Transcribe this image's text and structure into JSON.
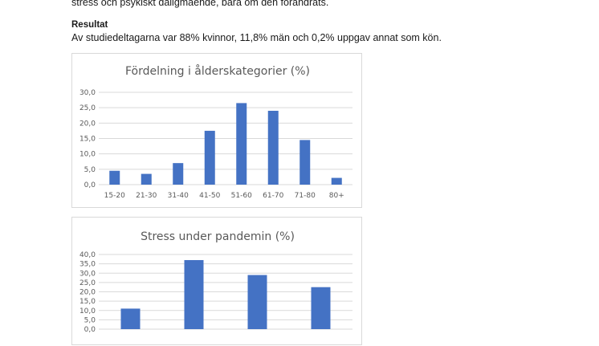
{
  "document": {
    "intro_tail": "stress och psykiskt dåligmående, bara om den förändrats.",
    "section_heading": "Resultat",
    "result_text": "Av studiedeltagarna var 88% kvinnor, 11,8% män och 0,2% uppgav annat som kön."
  },
  "chart_data": [
    {
      "type": "bar",
      "title": "Fördelning i ålderskategorier (%)",
      "categories": [
        "15-20",
        "21-30",
        "31-40",
        "41-50",
        "51-60",
        "61-70",
        "71-80",
        "80+"
      ],
      "values": [
        4.5,
        3.5,
        7.0,
        17.5,
        26.5,
        24.0,
        14.5,
        2.2
      ],
      "ylim": [
        0,
        30
      ],
      "yticks": [
        "0,0",
        "5,0",
        "10,0",
        "15,0",
        "20,0",
        "25,0",
        "30,0"
      ],
      "grid": true,
      "bar_color": "#4472C4"
    },
    {
      "type": "bar",
      "title": "Stress under pandemin (%)",
      "categories": [
        "",
        "",
        "",
        ""
      ],
      "values": [
        11,
        37,
        29,
        22.5
      ],
      "ylim": [
        0,
        40
      ],
      "yticks": [
        "0,0",
        "5,0",
        "10,0",
        "15,0",
        "20,0",
        "25,0",
        "30,0",
        "35,0",
        "40,0"
      ],
      "grid": true,
      "bar_color": "#4472C4"
    }
  ]
}
